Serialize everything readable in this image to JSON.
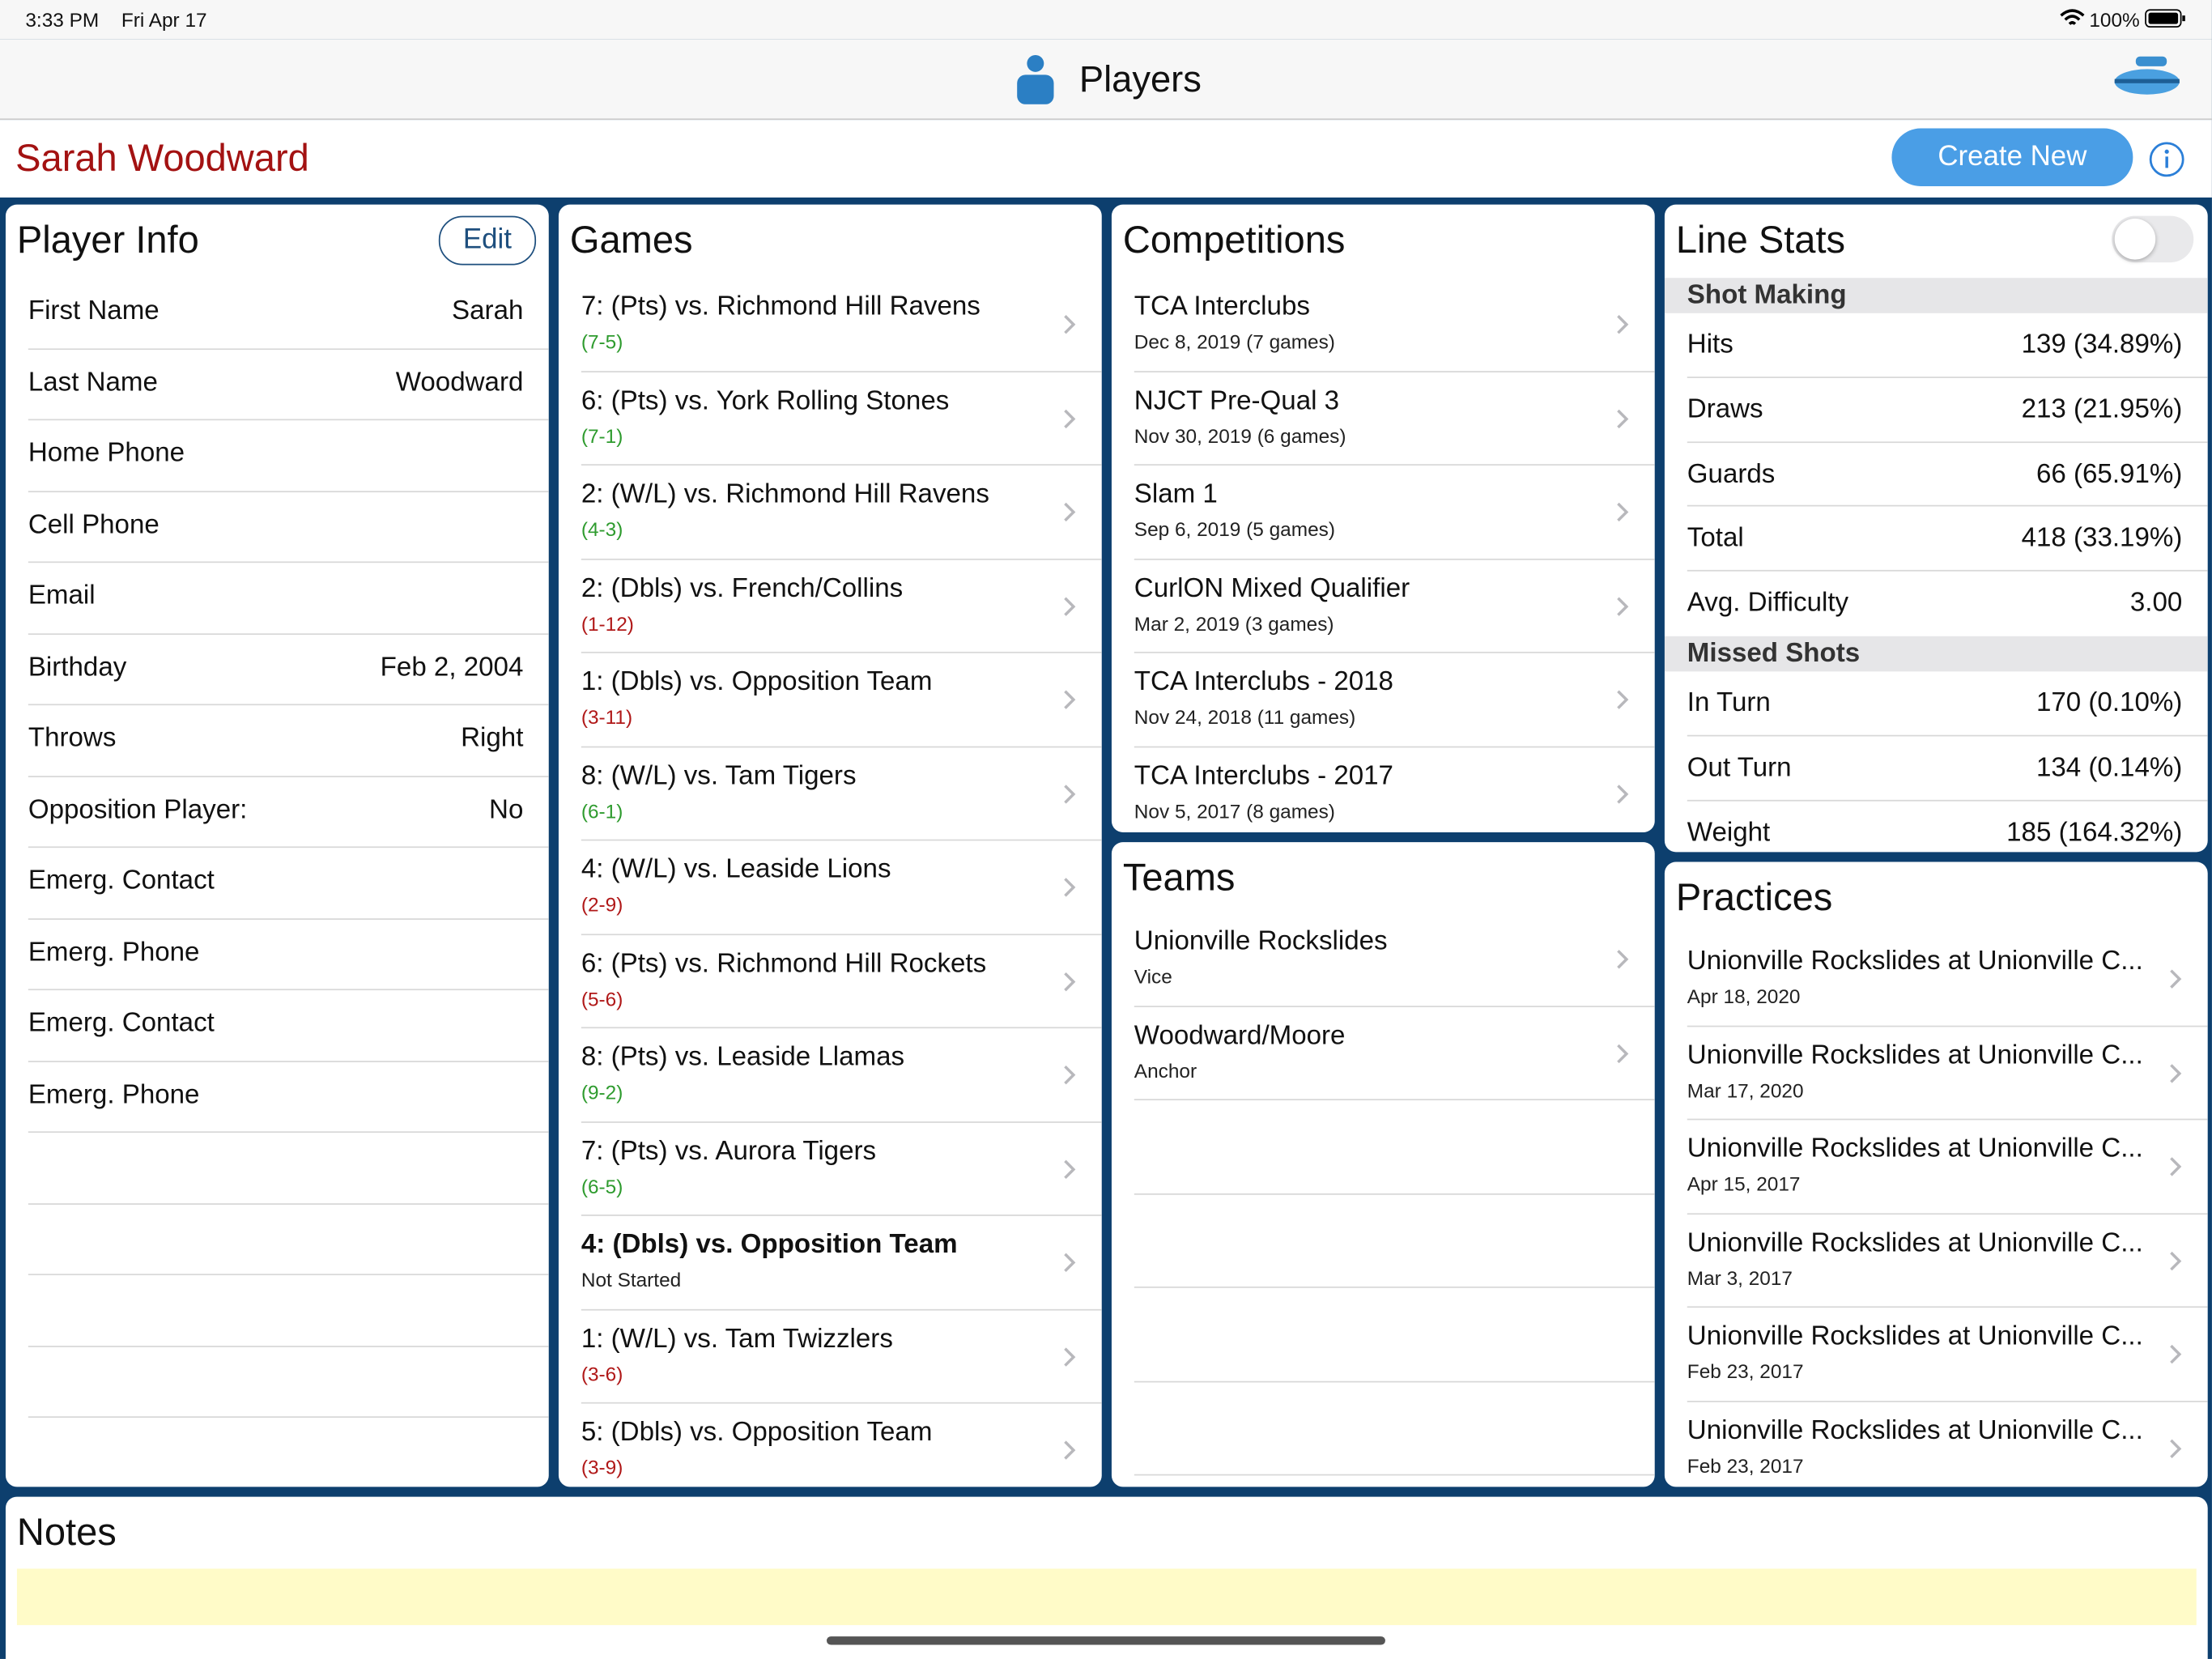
{
  "status_bar": {
    "time": "3:33 PM",
    "date": "Fri Apr 17",
    "battery": "100%"
  },
  "nav": {
    "title": "Players"
  },
  "header": {
    "player_name": "Sarah Woodward",
    "create_button": "Create New"
  },
  "player_info": {
    "title": "Player Info",
    "edit_button": "Edit",
    "rows": [
      {
        "label": "First Name",
        "value": "Sarah"
      },
      {
        "label": "Last Name",
        "value": "Woodward"
      },
      {
        "label": "Home Phone"
      },
      {
        "label": "Cell Phone"
      },
      {
        "label": "Email"
      },
      {
        "label": "Birthday",
        "value": "Feb 2, 2004"
      },
      {
        "label": "Throws",
        "value": "Right"
      },
      {
        "label": "Opposition Player:",
        "value": "No"
      },
      {
        "label": "Emerg. Contact"
      },
      {
        "label": "Emerg. Phone"
      },
      {
        "label": "Emerg. Contact"
      },
      {
        "label": "Emerg. Phone"
      }
    ]
  },
  "games": {
    "title": "Games",
    "items": [
      {
        "title": "7: (Pts) vs. Richmond Hill Ravens",
        "subtitle": "(7-5)",
        "color": "#2e9b2e"
      },
      {
        "title": "6: (Pts) vs. York Rolling Stones",
        "subtitle": "(7-1)",
        "color": "#2e9b2e"
      },
      {
        "title": "2: (W/L) vs. Richmond Hill Ravens",
        "subtitle": "(4-3)",
        "color": "#2e9b2e"
      },
      {
        "title": "2: (Dbls) vs. French/Collins",
        "subtitle": "(1-12)",
        "color": "#b01818"
      },
      {
        "title": "1: (Dbls) vs. Opposition Team",
        "subtitle": "(3-11)",
        "color": "#b01818"
      },
      {
        "title": "8: (W/L) vs. Tam Tigers",
        "subtitle": "(6-1)",
        "color": "#2e9b2e"
      },
      {
        "title": "4: (W/L) vs. Leaside Lions",
        "subtitle": "(2-9)",
        "color": "#b01818"
      },
      {
        "title": "6: (Pts) vs. Richmond Hill Rockets",
        "subtitle": "(5-6)",
        "color": "#b01818"
      },
      {
        "title": "8: (Pts) vs. Leaside Llamas",
        "subtitle": "(9-2)",
        "color": "#2e9b2e"
      },
      {
        "title": "7: (Pts) vs. Aurora Tigers",
        "subtitle": "(6-5)",
        "color": "#2e9b2e"
      },
      {
        "title": "4: (Dbls) vs. Opposition Team",
        "subtitle": "Not Started",
        "color": "#222222",
        "bold": true
      },
      {
        "title": "1: (W/L) vs. Tam Twizzlers",
        "subtitle": "(3-6)",
        "color": "#b01818"
      },
      {
        "title": "5: (Dbls) vs. Opposition Team",
        "subtitle": "(3-9)",
        "color": "#b01818"
      }
    ]
  },
  "competitions": {
    "title": "Competitions",
    "items": [
      {
        "title": "TCA Interclubs",
        "subtitle": "Dec 8, 2019 (7 games)"
      },
      {
        "title": "NJCT Pre-Qual 3",
        "subtitle": "Nov 30, 2019 (6 games)"
      },
      {
        "title": "Slam 1",
        "subtitle": "Sep 6, 2019 (5 games)"
      },
      {
        "title": "CurlON Mixed Qualifier",
        "subtitle": "Mar 2, 2019 (3 games)"
      },
      {
        "title": "TCA Interclubs - 2018",
        "subtitle": "Nov 24, 2018 (11 games)"
      },
      {
        "title": "TCA Interclubs - 2017",
        "subtitle": "Nov 5, 2017 (8 games)"
      }
    ]
  },
  "teams": {
    "title": "Teams",
    "items": [
      {
        "title": "Unionville Rockslides",
        "subtitle": "Vice"
      },
      {
        "title": "Woodward/Moore",
        "subtitle": "Anchor"
      }
    ]
  },
  "line_stats": {
    "title": "Line Stats",
    "sections": [
      {
        "title": "Shot Making",
        "rows": [
          {
            "label": "Hits",
            "value": "139 (34.89%)"
          },
          {
            "label": "Draws",
            "value": "213 (21.95%)"
          },
          {
            "label": "Guards",
            "value": "66 (65.91%)"
          },
          {
            "label": "Total",
            "value": "418 (33.19%)"
          },
          {
            "label": "Avg. Difficulty",
            "value": "3.00"
          }
        ]
      },
      {
        "title": "Missed Shots",
        "rows": [
          {
            "label": "In Turn",
            "value": "170 (0.10%)"
          },
          {
            "label": "Out Turn",
            "value": "134 (0.14%)"
          },
          {
            "label": "Weight",
            "value": "185 (164.32%)"
          }
        ]
      }
    ]
  },
  "practices": {
    "title": "Practices",
    "items": [
      {
        "title": "Unionville Rockslides at Unionville C...",
        "subtitle": "Apr 18, 2020"
      },
      {
        "title": "Unionville Rockslides at Unionville C...",
        "subtitle": "Mar 17, 2020"
      },
      {
        "title": "Unionville Rockslides at Unionville C...",
        "subtitle": "Apr 15, 2017"
      },
      {
        "title": "Unionville Rockslides at Unionville C...",
        "subtitle": "Mar 3, 2017"
      },
      {
        "title": "Unionville Rockslides at Unionville C...",
        "subtitle": "Feb 23, 2017"
      },
      {
        "title": "Unionville Rockslides at Unionville C...",
        "subtitle": "Feb 23, 2017"
      }
    ]
  },
  "notes": {
    "title": "Notes"
  }
}
